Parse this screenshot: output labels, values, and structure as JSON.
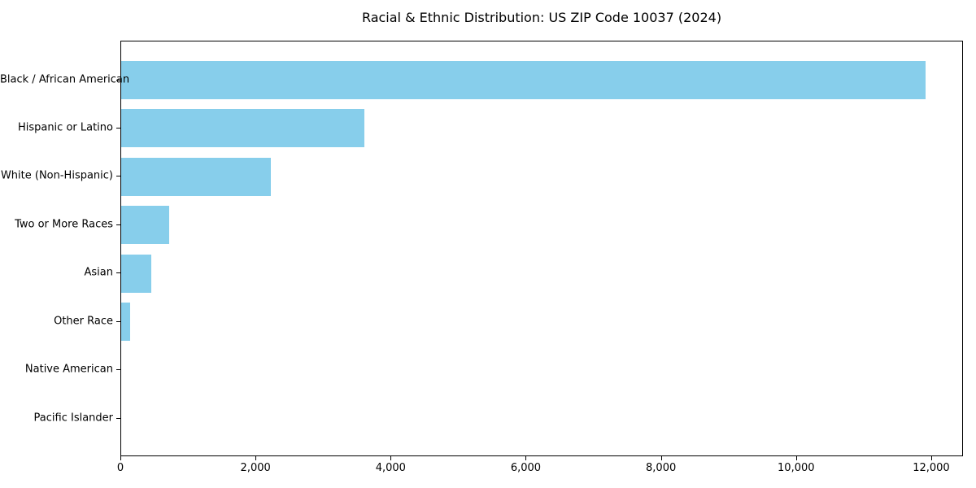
{
  "chart_data": {
    "type": "bar",
    "orientation": "horizontal",
    "title": "Racial & Ethnic Distribution: US ZIP Code 10037 (2024)",
    "categories": [
      "Black / African American",
      "Hispanic or Latino",
      "White (Non-Hispanic)",
      "Two or More Races",
      "Asian",
      "Other Race",
      "Native American",
      "Pacific Islander"
    ],
    "values": [
      11900,
      3600,
      2210,
      710,
      450,
      130,
      0,
      0
    ],
    "xlabel": "",
    "ylabel": "",
    "xlim": [
      0,
      12470
    ],
    "x_ticks": [
      0,
      2000,
      4000,
      6000,
      8000,
      10000,
      12000
    ],
    "x_tick_labels": [
      "0",
      "2,000",
      "4,000",
      "6,000",
      "8,000",
      "10,000",
      "12,000"
    ],
    "bar_color": "#87CEEB",
    "text_color": "#000000",
    "grid": false,
    "legend": null
  }
}
